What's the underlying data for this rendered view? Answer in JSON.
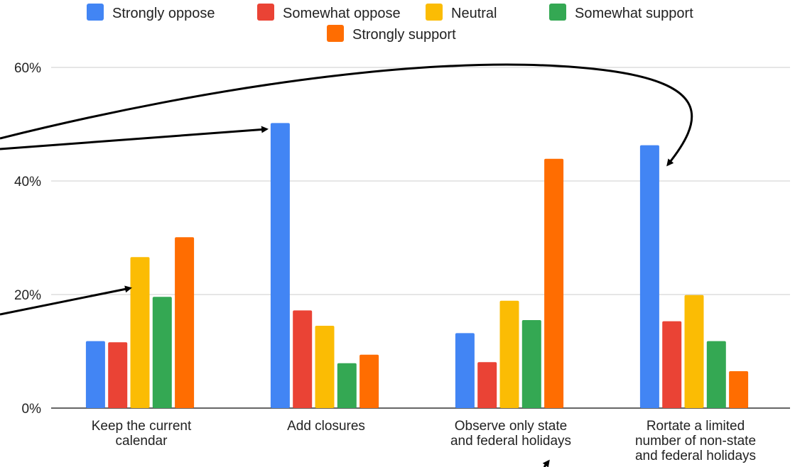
{
  "chart_data": {
    "type": "bar",
    "categories": [
      [
        "Keep the current",
        "calendar"
      ],
      [
        "Add closures"
      ],
      [
        "Observe only state",
        "and federal holidays"
      ],
      [
        "Rortate a limited",
        "number of non-state",
        "and federal holidays"
      ]
    ],
    "series": [
      {
        "name": "Strongly oppose",
        "color": "#4285f4",
        "values": [
          11.8,
          50.2,
          13.2,
          46.3
        ]
      },
      {
        "name": "Somewhat oppose",
        "color": "#ea4335",
        "values": [
          11.6,
          17.2,
          8.1,
          15.3
        ]
      },
      {
        "name": "Neutral",
        "color": "#fbbc04",
        "values": [
          26.6,
          14.5,
          18.9,
          19.9
        ]
      },
      {
        "name": "Somewhat support",
        "color": "#34a853",
        "values": [
          19.6,
          7.9,
          15.5,
          11.8
        ]
      },
      {
        "name": "Strongly support",
        "color": "#ff6d01",
        "values": [
          30.1,
          9.4,
          43.9,
          6.5
        ]
      }
    ],
    "y_ticks": [
      "0%",
      "20%",
      "40%",
      "60%"
    ],
    "y_tick_values": [
      0,
      20,
      40,
      60
    ],
    "ylim": [
      0,
      60
    ],
    "grid": true,
    "legend_position": "top",
    "annotations": "hand-drawn black arrows overlaid on the chart"
  }
}
